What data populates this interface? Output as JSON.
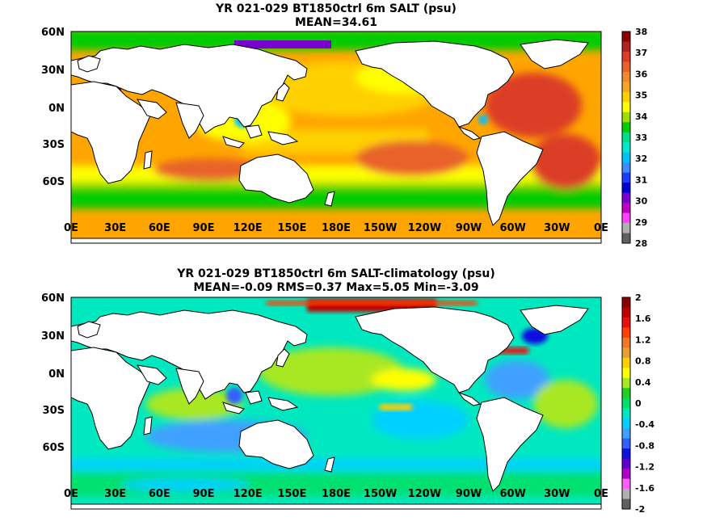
{
  "panels": [
    {
      "title": "YR 021-029 BT1850ctrl 6m SALT (psu)",
      "subtitle": "MEAN=34.61",
      "lat_labels": [
        "60N",
        "30N",
        "0N",
        "30S",
        "60S"
      ],
      "lon_labels": [
        "0E",
        "30E",
        "60E",
        "90E",
        "120E",
        "150E",
        "180E",
        "150W",
        "120W",
        "90W",
        "60W",
        "30W",
        "0E"
      ],
      "colorbar": {
        "labels": [
          "38",
          "37",
          "36",
          "35",
          "34",
          "33",
          "32",
          "31",
          "30",
          "29",
          "28"
        ],
        "colors": [
          "#8b0000",
          "#b22222",
          "#dc3c28",
          "#e8622a",
          "#f08a30",
          "#f5a623",
          "#ffd000",
          "#ffff00",
          "#9be000",
          "#00cc00",
          "#00e08a",
          "#00e8d0",
          "#00c0ff",
          "#3c8cff",
          "#1e3cff",
          "#0000d0",
          "#7a00d0",
          "#c000c0",
          "#ff44ff",
          "#b0b0b0",
          "#606060"
        ]
      }
    },
    {
      "title": "YR 021-029 BT1850ctrl 6m SALT-climatology (psu)",
      "subtitle": "MEAN=-0.09   RMS=0.37   Max=5.05   Min=-3.09",
      "lat_labels": [
        "60N",
        "30N",
        "0N",
        "30S",
        "60S"
      ],
      "lon_labels": [
        "0E",
        "30E",
        "60E",
        "90E",
        "120E",
        "150E",
        "180E",
        "150W",
        "120W",
        "90W",
        "60W",
        "30W",
        "0E"
      ],
      "colorbar": {
        "labels": [
          "2",
          "1.6",
          "1.2",
          "0.8",
          "0.4",
          "0",
          "-0.4",
          "-0.8",
          "-1.2",
          "-1.6",
          "-2"
        ],
        "colors": [
          "#8b0000",
          "#c00000",
          "#e81010",
          "#ff4000",
          "#f07828",
          "#e8a030",
          "#ffd000",
          "#ffff00",
          "#a8e820",
          "#20d020",
          "#00e070",
          "#00e8c0",
          "#00d0ff",
          "#40a0ff",
          "#3060ff",
          "#1010e0",
          "#6000d0",
          "#b000c8",
          "#ff60ff",
          "#b0b0b0",
          "#606060"
        ]
      }
    }
  ]
}
